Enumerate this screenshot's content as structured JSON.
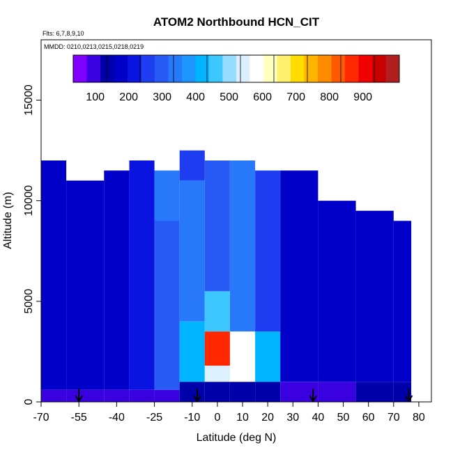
{
  "chart_data": {
    "type": "heatmap",
    "title": "ATOM2 Northbound HCN_CIT",
    "subtitle_flights": "Flts: 6,7,8,9,10",
    "subtitle_dates": "MMDD: 0210,0213,0215,0218,0219",
    "xlabel": "Latitude (deg N)",
    "ylabel": "Altitude (m)",
    "xlim": [
      -70,
      85
    ],
    "ylim": [
      0,
      18000
    ],
    "x_ticks": [
      -70,
      -55,
      -40,
      -25,
      -10,
      0,
      10,
      20,
      30,
      40,
      50,
      60,
      70,
      80
    ],
    "y_ticks": [
      0,
      5000,
      10000,
      15000
    ],
    "colorbar": {
      "range": [
        0,
        975
      ],
      "ticks": [
        100,
        200,
        300,
        400,
        500,
        600,
        700,
        800,
        900
      ],
      "colors": [
        "#7F00FF",
        "#3A00E0",
        "#0000AA",
        "#0000C8",
        "#0A14E0",
        "#1E3CF0",
        "#285AF5",
        "#2878FA",
        "#1E96FF",
        "#00B4FF",
        "#3CC8FF",
        "#96DCFF",
        "#DCF0FF",
        "#FFFFFF",
        "#FFFFC0",
        "#FFF06E",
        "#FFDC00",
        "#FFB400",
        "#FF8C00",
        "#FF5A00",
        "#FF2800",
        "#F00000",
        "#C80000",
        "#B01E1E"
      ]
    },
    "grid": false,
    "profile_markers_lat": [
      -55,
      -8,
      38,
      76
    ],
    "profiles": [
      {
        "lat_range": [
          -70,
          -60
        ],
        "levels": [
          [
            0,
            600,
            80
          ],
          [
            600,
            12000,
            130
          ]
        ]
      },
      {
        "lat_range": [
          -60,
          -45
        ],
        "levels": [
          [
            0,
            600,
            70
          ],
          [
            600,
            11000,
            140
          ]
        ]
      },
      {
        "lat_range": [
          -45,
          -35
        ],
        "levels": [
          [
            0,
            600,
            75
          ],
          [
            600,
            11500,
            150
          ]
        ]
      },
      {
        "lat_range": [
          -35,
          -25
        ],
        "levels": [
          [
            0,
            600,
            60
          ],
          [
            600,
            12000,
            180
          ]
        ]
      },
      {
        "lat_range": [
          -25,
          -15
        ],
        "levels": [
          [
            0,
            600,
            70
          ],
          [
            600,
            9000,
            270
          ],
          [
            9000,
            11500,
            320
          ]
        ]
      },
      {
        "lat_range": [
          -15,
          -5
        ],
        "levels": [
          [
            0,
            1000,
            90
          ],
          [
            1000,
            4000,
            380
          ],
          [
            4000,
            11000,
            300
          ],
          [
            11000,
            12500,
            230
          ]
        ]
      },
      {
        "lat_range": [
          -5,
          5
        ],
        "levels": [
          [
            0,
            1000,
            110
          ],
          [
            1000,
            1800,
            500
          ],
          [
            1800,
            3500,
            820
          ],
          [
            3500,
            5500,
            420
          ],
          [
            5500,
            12000,
            260
          ]
        ]
      },
      {
        "lat_range": [
          5,
          15
        ],
        "levels": [
          [
            0,
            1000,
            100
          ],
          [
            1000,
            3500,
            560
          ],
          [
            3500,
            6000,
            320
          ],
          [
            6000,
            12000,
            300
          ]
        ]
      },
      {
        "lat_range": [
          15,
          25
        ],
        "levels": [
          [
            0,
            1000,
            90
          ],
          [
            1000,
            3500,
            380
          ],
          [
            3500,
            11500,
            220
          ]
        ]
      },
      {
        "lat_range": [
          25,
          40
        ],
        "levels": [
          [
            0,
            1000,
            80
          ],
          [
            1000,
            11500,
            160
          ]
        ]
      },
      {
        "lat_range": [
          40,
          55
        ],
        "levels": [
          [
            0,
            1000,
            70
          ],
          [
            1000,
            10000,
            150
          ]
        ]
      },
      {
        "lat_range": [
          55,
          70
        ],
        "levels": [
          [
            0,
            1000,
            90
          ],
          [
            1000,
            9500,
            140
          ]
        ]
      },
      {
        "lat_range": [
          70,
          77
        ],
        "levels": [
          [
            0,
            1000,
            100
          ],
          [
            1000,
            9000,
            130
          ]
        ]
      }
    ]
  }
}
